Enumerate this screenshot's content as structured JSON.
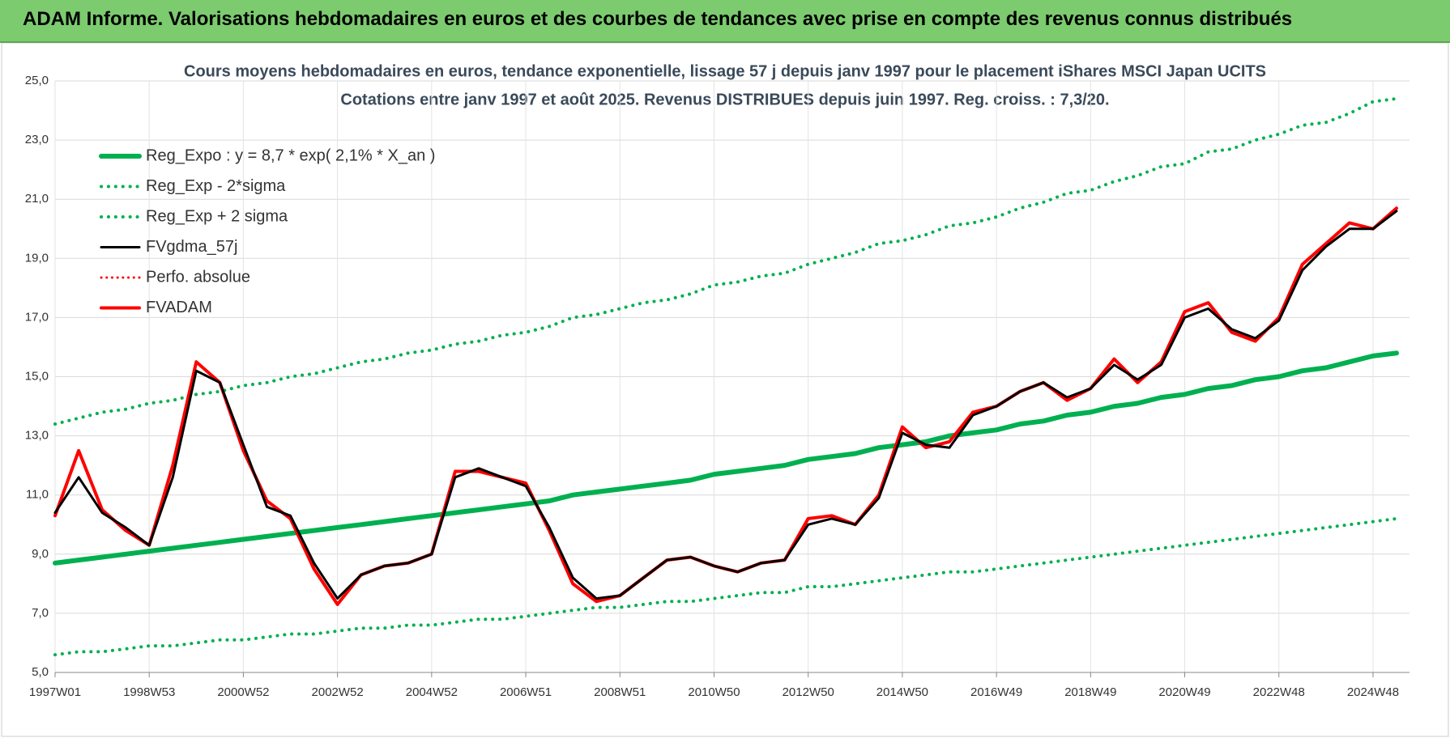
{
  "header": {
    "title": "ADAM Informe. Valorisations hebdomadaires en euros et des courbes de tendances avec prise en compte des revenus connus distribués"
  },
  "chart_data": {
    "type": "line",
    "title": "Cours moyens hebdomadaires en euros, tendance exponentielle, lissage 57 j depuis janv 1997 pour le placement iShares MSCI Japan UCITS",
    "subtitle": "Cotations entre janv 1997 et août 2025. Revenus DISTRIBUES depuis juin 1997. Reg. croiss. : 7,3/20.",
    "categories": [
      "1997W01",
      null,
      null,
      null,
      "1998W53",
      null,
      null,
      null,
      "2000W52",
      null,
      null,
      null,
      "2002W52",
      null,
      null,
      null,
      "2004W52",
      null,
      null,
      null,
      "2006W51",
      null,
      null,
      null,
      "2008W51",
      null,
      null,
      null,
      "2010W50",
      null,
      null,
      null,
      "2012W50",
      null,
      null,
      null,
      "2014W50",
      null,
      null,
      null,
      "2016W49",
      null,
      null,
      null,
      "2018W49",
      null,
      null,
      null,
      "2020W49",
      null,
      null,
      null,
      "2022W48",
      null,
      null,
      null,
      "2024W48",
      null
    ],
    "ylim": [
      5,
      25
    ],
    "yticks": [
      {
        "value": 5,
        "label": "5,0"
      },
      {
        "value": 7,
        "label": "7,0"
      },
      {
        "value": 9,
        "label": "9,0"
      },
      {
        "value": 11,
        "label": "11,0"
      },
      {
        "value": 13,
        "label": "13,0"
      },
      {
        "value": 15,
        "label": "15,0"
      },
      {
        "value": 17,
        "label": "17,0"
      },
      {
        "value": 19,
        "label": "19,0"
      },
      {
        "value": 21,
        "label": "21,0"
      },
      {
        "value": 23,
        "label": "23,0"
      },
      {
        "value": 25,
        "label": "25,0"
      }
    ],
    "grid": true,
    "legend": "upper left",
    "series": [
      {
        "name": "Reg_Expo : y = 8,7 * exp( 2,1% *  X_an )",
        "color": "#00b050",
        "dash": "solid",
        "width": 6,
        "values": [
          8.7,
          8.8,
          8.9,
          9.0,
          9.1,
          9.2,
          9.3,
          9.4,
          9.5,
          9.6,
          9.7,
          9.8,
          9.9,
          10.0,
          10.1,
          10.2,
          10.3,
          10.4,
          10.5,
          10.6,
          10.7,
          10.8,
          11.0,
          11.1,
          11.2,
          11.3,
          11.4,
          11.5,
          11.7,
          11.8,
          11.9,
          12.0,
          12.2,
          12.3,
          12.4,
          12.6,
          12.7,
          12.8,
          13.0,
          13.1,
          13.2,
          13.4,
          13.5,
          13.7,
          13.8,
          14.0,
          14.1,
          14.3,
          14.4,
          14.6,
          14.7,
          14.9,
          15.0,
          15.2,
          15.3,
          15.5,
          15.7,
          15.8
        ]
      },
      {
        "name": "Reg_Exp - 2*sigma",
        "color": "#00b050",
        "dash": "dotted",
        "width": 4,
        "values": [
          5.6,
          5.7,
          5.7,
          5.8,
          5.9,
          5.9,
          6.0,
          6.1,
          6.1,
          6.2,
          6.3,
          6.3,
          6.4,
          6.5,
          6.5,
          6.6,
          6.6,
          6.7,
          6.8,
          6.8,
          6.9,
          7.0,
          7.1,
          7.2,
          7.2,
          7.3,
          7.4,
          7.4,
          7.5,
          7.6,
          7.7,
          7.7,
          7.9,
          7.9,
          8.0,
          8.1,
          8.2,
          8.3,
          8.4,
          8.4,
          8.5,
          8.6,
          8.7,
          8.8,
          8.9,
          9.0,
          9.1,
          9.2,
          9.3,
          9.4,
          9.5,
          9.6,
          9.7,
          9.8,
          9.9,
          10.0,
          10.1,
          10.2
        ]
      },
      {
        "name": "Reg_Exp + 2 sigma",
        "color": "#00b050",
        "dash": "dotted",
        "width": 4,
        "values": [
          13.4,
          13.6,
          13.8,
          13.9,
          14.1,
          14.2,
          14.4,
          14.5,
          14.7,
          14.8,
          15.0,
          15.1,
          15.3,
          15.5,
          15.6,
          15.8,
          15.9,
          16.1,
          16.2,
          16.4,
          16.5,
          16.7,
          17.0,
          17.1,
          17.3,
          17.5,
          17.6,
          17.8,
          18.1,
          18.2,
          18.4,
          18.5,
          18.8,
          19.0,
          19.2,
          19.5,
          19.6,
          19.8,
          20.1,
          20.2,
          20.4,
          20.7,
          20.9,
          21.2,
          21.3,
          21.6,
          21.8,
          22.1,
          22.2,
          22.6,
          22.7,
          23.0,
          23.2,
          23.5,
          23.6,
          23.9,
          24.3,
          24.4
        ]
      },
      {
        "name": "FVgdma_57j",
        "color": "#000000",
        "dash": "solid",
        "width": 3,
        "values": [
          10.4,
          11.6,
          10.4,
          9.9,
          9.3,
          11.6,
          15.2,
          14.8,
          12.7,
          10.6,
          10.3,
          8.7,
          7.5,
          8.3,
          8.6,
          8.7,
          9.0,
          11.6,
          11.9,
          11.6,
          11.3,
          9.9,
          8.2,
          7.5,
          7.6,
          8.2,
          8.8,
          8.9,
          8.6,
          8.4,
          8.7,
          8.8,
          10.0,
          10.2,
          10.0,
          10.9,
          13.1,
          12.7,
          12.6,
          13.7,
          14.0,
          14.5,
          14.8,
          14.3,
          14.6,
          15.4,
          14.9,
          15.4,
          17.0,
          17.3,
          16.6,
          16.3,
          16.9,
          18.6,
          19.4,
          20.0,
          20.0,
          20.6
        ]
      },
      {
        "name": "Perfo. absolue",
        "color": "#ff0000",
        "dash": "dotted",
        "width": 3,
        "values": [
          10.3,
          12.5,
          10.5,
          9.8,
          9.3,
          12.0,
          15.5,
          14.8,
          12.5,
          10.8,
          10.2,
          8.5,
          7.3,
          8.3,
          8.6,
          8.7,
          9.0,
          11.8,
          11.8,
          11.6,
          11.4,
          9.8,
          8.0,
          7.4,
          7.6,
          8.2,
          8.8,
          8.9,
          8.6,
          8.4,
          8.7,
          8.8,
          10.2,
          10.3,
          10.0,
          11.0,
          13.3,
          12.6,
          12.8,
          13.8,
          14.0,
          14.5,
          14.8,
          14.2,
          14.6,
          15.6,
          14.8,
          15.5,
          17.2,
          17.5,
          16.5,
          16.2,
          17.0,
          18.8,
          19.5,
          20.2,
          20.0,
          20.7
        ]
      },
      {
        "name": "FVADAM",
        "color": "#ff0000",
        "dash": "solid",
        "width": 4,
        "values": [
          10.3,
          12.5,
          10.5,
          9.8,
          9.3,
          12.0,
          15.5,
          14.8,
          12.5,
          10.8,
          10.2,
          8.5,
          7.3,
          8.3,
          8.6,
          8.7,
          9.0,
          11.8,
          11.8,
          11.6,
          11.4,
          9.8,
          8.0,
          7.4,
          7.6,
          8.2,
          8.8,
          8.9,
          8.6,
          8.4,
          8.7,
          8.8,
          10.2,
          10.3,
          10.0,
          11.0,
          13.3,
          12.6,
          12.8,
          13.8,
          14.0,
          14.5,
          14.8,
          14.2,
          14.6,
          15.6,
          14.8,
          15.5,
          17.2,
          17.5,
          16.5,
          16.2,
          17.0,
          18.8,
          19.5,
          20.2,
          20.0,
          20.7
        ]
      }
    ]
  }
}
